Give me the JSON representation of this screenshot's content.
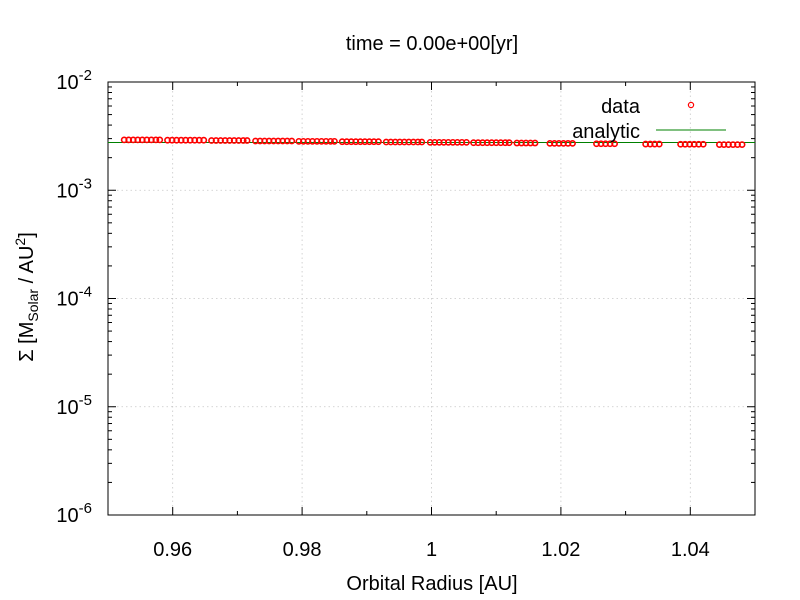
{
  "chart_data": {
    "type": "scatter",
    "title": "time = 0.00e+00[yr]",
    "xlabel": "Orbital Radius [AU]",
    "ylabel": {
      "prefix": "Σ [M",
      "sub": "Solar",
      "mid": " / AU",
      "sup": "2",
      "suffix": "]"
    },
    "x_scale": "linear",
    "y_scale": "log",
    "xlim": [
      0.95,
      1.05
    ],
    "ylim": [
      1e-06,
      0.01
    ],
    "x_ticks": [
      {
        "value": 0.96,
        "label": "0.96"
      },
      {
        "value": 0.98,
        "label": "0.98"
      },
      {
        "value": 1.0,
        "label": "1"
      },
      {
        "value": 1.02,
        "label": "1.02"
      },
      {
        "value": 1.04,
        "label": "1.04"
      }
    ],
    "y_ticks": [
      {
        "value": 1e-06,
        "base": "10",
        "exp": "-6"
      },
      {
        "value": 1e-05,
        "base": "10",
        "exp": "-5"
      },
      {
        "value": 0.0001,
        "base": "10",
        "exp": "-4"
      },
      {
        "value": 0.001,
        "base": "10",
        "exp": "-3"
      },
      {
        "value": 0.01,
        "base": "10",
        "exp": "-2"
      }
    ],
    "grid": true,
    "legend_position": "top-right",
    "series": [
      {
        "name": "data",
        "kind": "points",
        "marker": "open-circle",
        "color": "#ff0000",
        "x": [
          0.9525,
          0.9532,
          0.9539,
          0.9546,
          0.9553,
          0.956,
          0.9567,
          0.9574,
          0.958,
          0.9592,
          0.9599,
          0.9606,
          0.9613,
          0.962,
          0.9627,
          0.9634,
          0.9641,
          0.9648,
          0.966,
          0.9667,
          0.9674,
          0.9681,
          0.9688,
          0.9695,
          0.9702,
          0.9709,
          0.9715,
          0.9728,
          0.9735,
          0.9742,
          0.9749,
          0.9756,
          0.9763,
          0.977,
          0.9777,
          0.9784,
          0.9795,
          0.9802,
          0.9809,
          0.9816,
          0.9823,
          0.983,
          0.9837,
          0.9844,
          0.985,
          0.9862,
          0.9869,
          0.9876,
          0.9883,
          0.989,
          0.9897,
          0.9904,
          0.9911,
          0.9918,
          0.993,
          0.9937,
          0.9944,
          0.9951,
          0.9958,
          0.9965,
          0.9972,
          0.9979,
          0.9985,
          0.9998,
          1.0005,
          1.0012,
          1.0019,
          1.0026,
          1.0033,
          1.004,
          1.0047,
          1.0054,
          1.0065,
          1.0072,
          1.0079,
          1.0086,
          1.0093,
          1.01,
          1.0107,
          1.0114,
          1.012,
          1.0132,
          1.0139,
          1.0146,
          1.0153,
          1.016,
          1.0183,
          1.019,
          1.0197,
          1.0204,
          1.0211,
          1.0218,
          1.0255,
          1.0262,
          1.0269,
          1.0276,
          1.0283,
          1.0331,
          1.0338,
          1.0345,
          1.0352,
          1.0385,
          1.0392,
          1.0399,
          1.0406,
          1.0413,
          1.042,
          1.0445,
          1.0452,
          1.0459,
          1.0466,
          1.0473,
          1.048
        ],
        "y": [
          0.00292,
          0.00292,
          0.00292,
          0.00292,
          0.00292,
          0.00292,
          0.00292,
          0.00292,
          0.00292,
          0.0029,
          0.0029,
          0.0029,
          0.0029,
          0.0029,
          0.0029,
          0.0029,
          0.0029,
          0.0029,
          0.00288,
          0.00288,
          0.00288,
          0.00288,
          0.00288,
          0.00288,
          0.00288,
          0.00288,
          0.00288,
          0.00285,
          0.00285,
          0.00285,
          0.00285,
          0.00285,
          0.00285,
          0.00285,
          0.00285,
          0.00285,
          0.00283,
          0.00283,
          0.00283,
          0.00283,
          0.00283,
          0.00283,
          0.00283,
          0.00283,
          0.00283,
          0.00281,
          0.00281,
          0.00281,
          0.00281,
          0.00281,
          0.00281,
          0.00281,
          0.00281,
          0.00281,
          0.00279,
          0.00279,
          0.00279,
          0.00279,
          0.00279,
          0.00279,
          0.00279,
          0.00279,
          0.00279,
          0.00277,
          0.00277,
          0.00277,
          0.00277,
          0.00277,
          0.00277,
          0.00277,
          0.00277,
          0.00277,
          0.00275,
          0.00275,
          0.00275,
          0.00275,
          0.00275,
          0.00275,
          0.00275,
          0.00275,
          0.00275,
          0.00273,
          0.00273,
          0.00273,
          0.00273,
          0.00273,
          0.00271,
          0.00271,
          0.00271,
          0.00271,
          0.00271,
          0.00271,
          0.00269,
          0.00269,
          0.00269,
          0.00269,
          0.00269,
          0.00267,
          0.00267,
          0.00267,
          0.00267,
          0.00266,
          0.00266,
          0.00266,
          0.00266,
          0.00266,
          0.00266,
          0.00264,
          0.00264,
          0.00264,
          0.00264,
          0.00264,
          0.00264
        ]
      },
      {
        "name": "analytic",
        "kind": "line",
        "color": "#008000",
        "x": [
          0.95,
          1.05
        ],
        "y": [
          0.00276,
          0.00276
        ]
      }
    ]
  }
}
